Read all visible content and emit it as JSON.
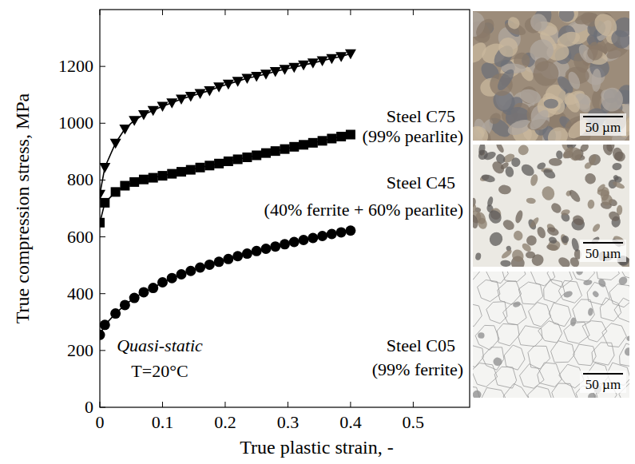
{
  "chart_data": {
    "type": "line",
    "x_label": "True plastic strain, -",
    "y_label": "True compression stress, MPa",
    "x": [
      0,
      0.008,
      0.025,
      0.04,
      0.055,
      0.07,
      0.085,
      0.1,
      0.115,
      0.13,
      0.145,
      0.16,
      0.175,
      0.19,
      0.205,
      0.22,
      0.235,
      0.25,
      0.265,
      0.28,
      0.295,
      0.31,
      0.325,
      0.34,
      0.355,
      0.37,
      0.385,
      0.4
    ],
    "series": [
      {
        "name": "Steel C75",
        "color": "#000000",
        "marker": "triangle-down",
        "line_style": "solid",
        "values": [
          750,
          845,
          930,
          980,
          1010,
          1030,
          1045,
          1060,
          1072,
          1085,
          1095,
          1105,
          1115,
          1128,
          1138,
          1148,
          1158,
          1165,
          1173,
          1182,
          1190,
          1197,
          1205,
          1212,
          1220,
          1228,
          1235,
          1245
        ]
      },
      {
        "name": "Steel C45",
        "color": "#000000",
        "marker": "square",
        "line_style": "solid",
        "values": [
          650,
          720,
          758,
          780,
          793,
          802,
          808,
          815,
          822,
          829,
          836,
          844,
          851,
          858,
          866,
          873,
          880,
          887,
          895,
          902,
          909,
          917,
          924,
          931,
          938,
          946,
          953,
          960
        ]
      },
      {
        "name": "Steel C05",
        "color": "#000000",
        "marker": "circle",
        "line_style": "solid",
        "values": [
          255,
          290,
          330,
          360,
          385,
          405,
          420,
          440,
          455,
          468,
          480,
          492,
          502,
          512,
          522,
          532,
          541,
          550,
          558,
          566,
          574,
          582,
          589,
          596,
          603,
          610,
          616,
          622
        ]
      }
    ],
    "annotations": [
      "(99% pearlite)",
      "(40% ferrite + 60% pearlite)",
      "(99% ferrite)",
      "Quasi-static",
      "T=20°C",
      "50 µm",
      "50 µm",
      "50 µm"
    ],
    "xlim": [
      0,
      0.59
    ],
    "xticks": [
      0,
      0.1,
      0.2,
      0.3,
      0.4,
      0.5
    ],
    "ylim": [
      0,
      1400
    ],
    "yticks": [
      0,
      200,
      400,
      600,
      800,
      1000,
      1200
    ],
    "grid": false
  }
}
